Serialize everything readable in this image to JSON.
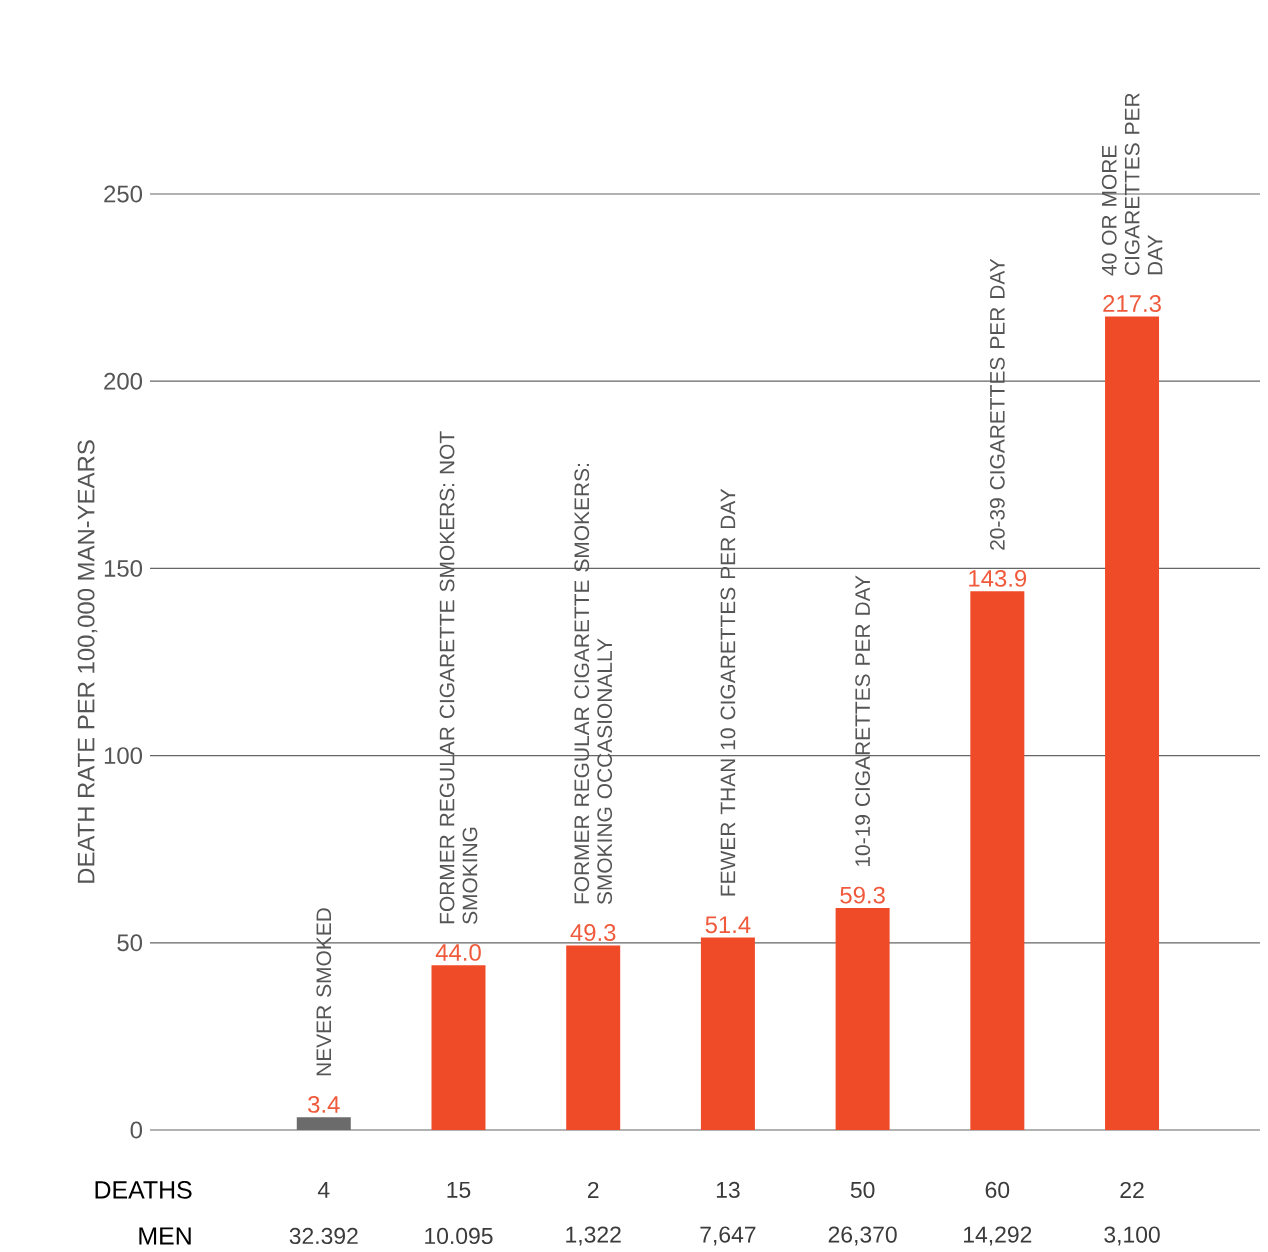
{
  "chart_data": {
    "type": "bar",
    "ylabel": "DEATH RATE PER 100,000 MAN-YEARS",
    "categories": [
      "NEVER SMOKED",
      "FORMER REGULAR CIGARETTE SMOKERS: NOT SMOKING",
      "FORMER REGULAR CIGARETTE SMOKERS: SMOKING OCCASIONALLY",
      "FEWER THAN 10 CIGARETTES PER DAY",
      "10-19 CIGARETTES PER DAY",
      "20-39 CIGARETTES PER DAY",
      "40 OR MORE CIGARETTES PER DAY"
    ],
    "values": [
      3.4,
      44.0,
      49.3,
      51.4,
      59.3,
      143.9,
      217.3
    ],
    "value_labels": [
      "3.4",
      "44.0",
      "49.3",
      "51.4",
      "59.3",
      "143.9",
      "217.3"
    ],
    "colors": [
      "#6b6b6b",
      "#f04b28",
      "#f04b28",
      "#f04b28",
      "#f04b28",
      "#f04b28",
      "#f04b28"
    ],
    "ylim": [
      0,
      250
    ],
    "yticks": [
      0,
      50,
      100,
      150,
      200,
      250
    ],
    "grid": "y",
    "annotations": [
      "DEATHS",
      "4",
      "15",
      "2",
      "13",
      "50",
      "60",
      "22",
      "MEN",
      "32.392",
      "10.095",
      "1,322",
      "7,647",
      "26,370",
      "14,292",
      "3,100"
    ]
  }
}
